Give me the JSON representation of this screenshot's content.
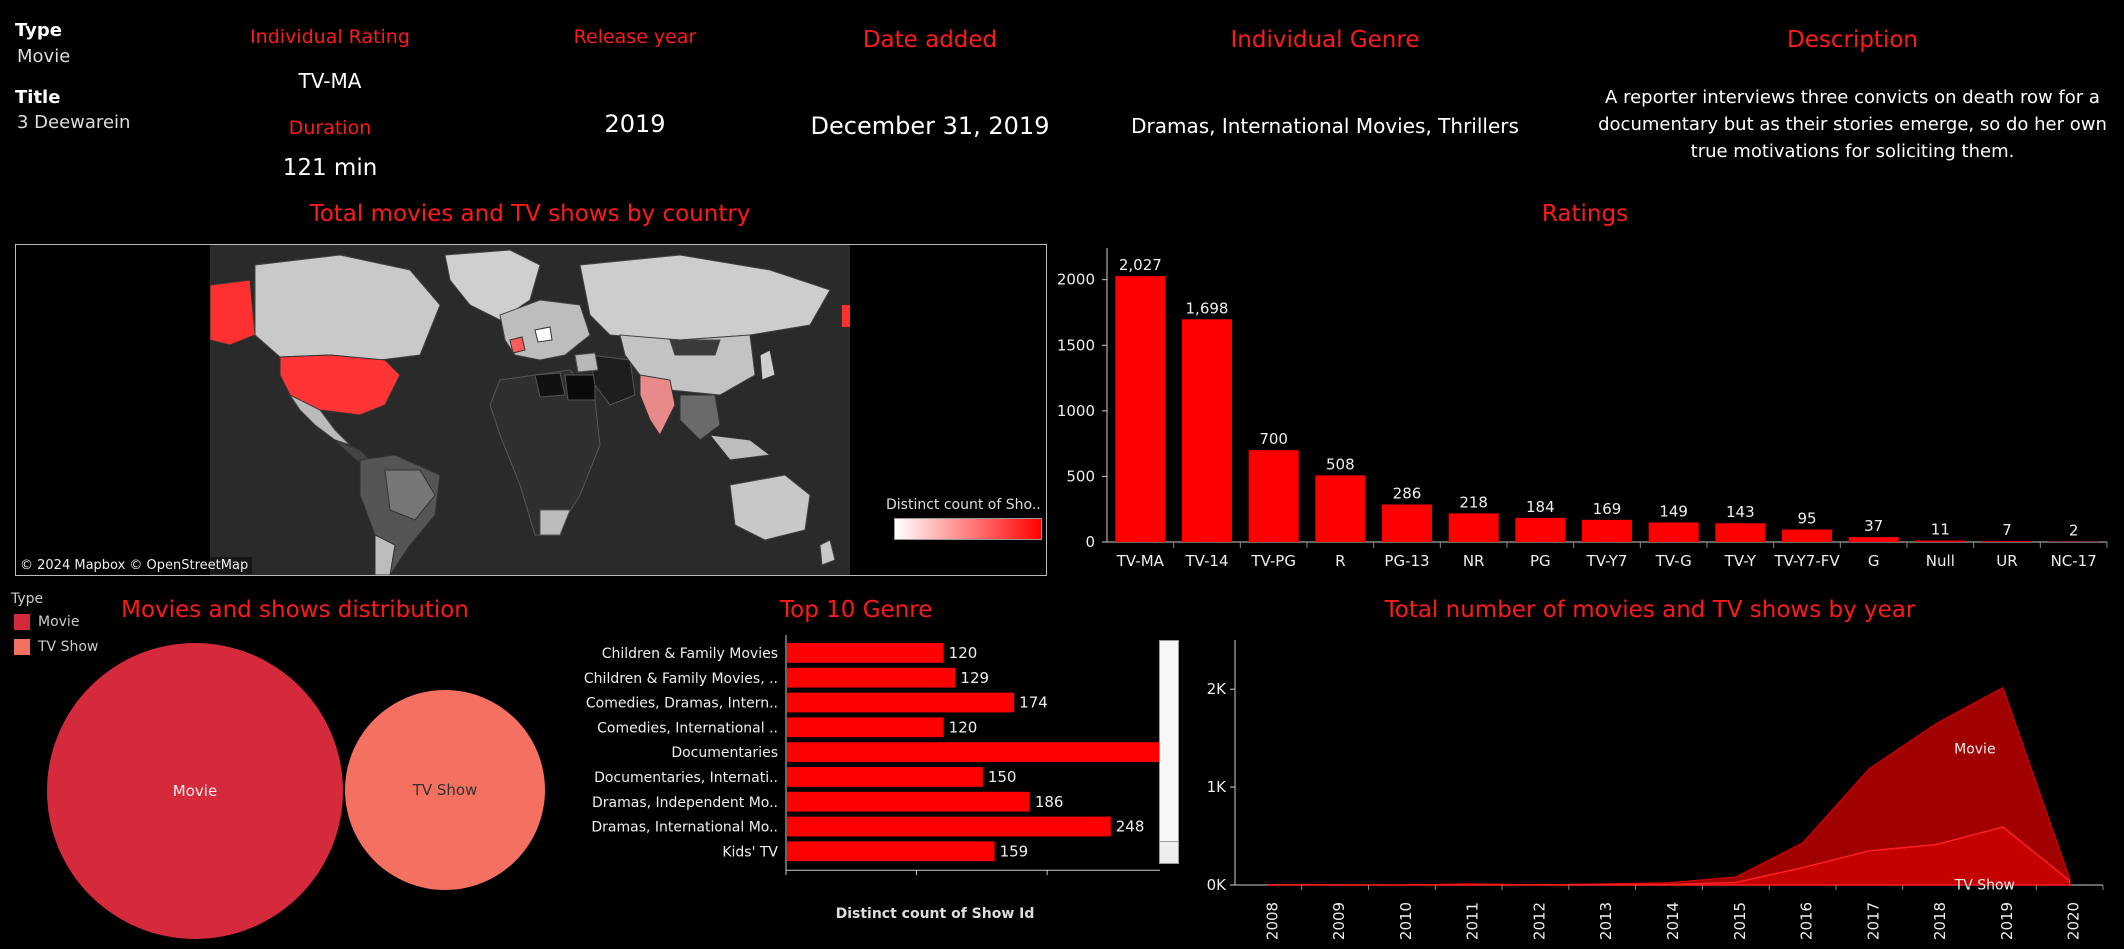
{
  "details": {
    "type_label": "Type",
    "type_value": "Movie",
    "title_label": "Title",
    "title_value": "3 Deewarein",
    "rating_label": "Individual Rating",
    "rating_value": "TV-MA",
    "duration_label": "Duration",
    "duration_value": "121 min",
    "release_label": "Release year",
    "release_value": "2019",
    "date_label": "Date added",
    "date_value": "December 31, 2019",
    "genre_label": "Individual Genre",
    "genre_value": "Dramas, International Movies, Thrillers",
    "desc_label": "Description",
    "desc_value": "A reporter interviews three convicts on death row for a documentary but as their stories emerge, so do her own true motivations for soliciting them."
  },
  "map": {
    "title": "Total movies and TV shows by country",
    "attribution": "© 2024 Mapbox © OpenStreetMap",
    "legend_title": "Distinct count of Sho.."
  },
  "ratings_chart": {
    "title": "Ratings",
    "chart_data": {
      "type": "bar",
      "categories": [
        "TV-MA",
        "TV-14",
        "TV-PG",
        "R",
        "PG-13",
        "NR",
        "PG",
        "TV-Y7",
        "TV-G",
        "TV-Y",
        "TV-Y7-FV",
        "G",
        "Null",
        "UR",
        "NC-17"
      ],
      "values": [
        2027,
        1698,
        700,
        508,
        286,
        218,
        184,
        169,
        149,
        143,
        95,
        37,
        11,
        7,
        2
      ],
      "value_labels": [
        "2,027",
        "1,698",
        "700",
        "508",
        "286",
        "218",
        "184",
        "169",
        "149",
        "143",
        "95",
        "37",
        "11",
        "7",
        "2"
      ],
      "yticks": [
        "2000",
        "1500",
        "1000",
        "500",
        "0"
      ],
      "ylim": [
        0,
        2150
      ],
      "color": "#ff0000"
    }
  },
  "distribution": {
    "title": "Movies  and shows distribution",
    "legend_title": "Type",
    "legend": [
      {
        "label": "Movie",
        "color": "#d42a3c"
      },
      {
        "label": "TV Show",
        "color": "#f47060"
      }
    ],
    "chart_data": {
      "type": "bubble",
      "categories": [
        "Movie",
        "TV Show"
      ],
      "colors": [
        "#d42a3c",
        "#f47060"
      ]
    }
  },
  "genre_chart": {
    "title": "Top 10 Genre",
    "xlabel": "Distinct count of Show Id",
    "chart_data": {
      "type": "bar",
      "orientation": "horizontal",
      "categories": [
        "Children & Family Movies",
        "Children & Family Movies, ..",
        "Comedies, Dramas, Intern..",
        "Comedies, International ..",
        "Documentaries",
        "Documentaries, Internati..",
        "Dramas, Independent Mo..",
        "Dramas, International Mo..",
        "Kids' TV"
      ],
      "values": [
        120,
        129,
        174,
        120,
        299,
        150,
        186,
        248,
        159
      ],
      "xticks": [
        "0",
        "100",
        "200",
        "300"
      ],
      "xlim": [
        0,
        360
      ],
      "color": "#ff0000"
    }
  },
  "year_chart": {
    "title": "Total number of movies and TV shows by year",
    "chart_data": {
      "type": "area",
      "x": [
        "2008",
        "2009",
        "2010",
        "2011",
        "2012",
        "2013",
        "2014",
        "2015",
        "2016",
        "2017",
        "2018",
        "2019",
        "2020"
      ],
      "series": [
        {
          "name": "Movie",
          "values": [
            1,
            2,
            1,
            13,
            3,
            6,
            19,
            56,
            253,
            839,
            1237,
            1424,
            25
          ],
          "color": "#a00000"
        },
        {
          "name": "TV Show",
          "values": [
            1,
            0,
            0,
            0,
            0,
            5,
            5,
            26,
            176,
            349,
            412,
            592,
            44
          ],
          "color": "#c40000"
        }
      ],
      "yticks": [
        "2K",
        "1K",
        "0K"
      ],
      "ylim": [
        0,
        2400
      ]
    }
  }
}
